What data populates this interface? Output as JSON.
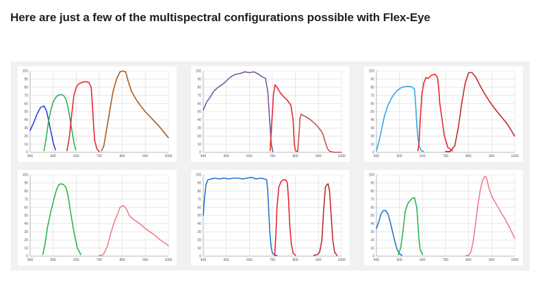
{
  "heading": "Here are just a few of the multispectral configurations possible with Flex-Eye",
  "chart_data": [
    {
      "type": "line",
      "xlim": [
        400,
        1000
      ],
      "ylim": [
        0,
        100
      ],
      "x_ticks": [
        400,
        500,
        600,
        700,
        800,
        900,
        1000
      ],
      "y_ticks": [
        0,
        10,
        20,
        30,
        40,
        50,
        60,
        70,
        80,
        90,
        100
      ],
      "grid": true,
      "series": [
        {
          "color": "#2a3fd6",
          "x": [
            400,
            415,
            430,
            445,
            460,
            470,
            480,
            490,
            500,
            510
          ],
          "y": [
            27,
            36,
            47,
            55,
            57,
            52,
            40,
            26,
            12,
            3
          ]
        },
        {
          "color": "#2bb24c",
          "x": [
            460,
            470,
            480,
            490,
            500,
            510,
            520,
            535,
            545,
            555,
            565,
            575,
            590,
            598
          ],
          "y": [
            2,
            18,
            38,
            52,
            62,
            67,
            70,
            71,
            70,
            66,
            55,
            38,
            12,
            3
          ]
        },
        {
          "color": "#e8232a",
          "x": [
            560,
            570,
            580,
            590,
            600,
            610,
            625,
            640,
            655,
            665,
            670,
            675,
            680,
            690,
            700
          ],
          "y": [
            2,
            18,
            45,
            70,
            80,
            84,
            86,
            87,
            86,
            80,
            60,
            35,
            15,
            4,
            1
          ]
        },
        {
          "color": "#a85a1c",
          "x": [
            710,
            720,
            730,
            745,
            760,
            775,
            790,
            800,
            815,
            825,
            840,
            860,
            880,
            900,
            920,
            940,
            960,
            980,
            1000
          ],
          "y": [
            2,
            8,
            25,
            50,
            75,
            90,
            99,
            100,
            99,
            88,
            75,
            65,
            57,
            50,
            44,
            38,
            32,
            25,
            18
          ]
        }
      ]
    },
    {
      "type": "line",
      "xlim": [
        400,
        1000
      ],
      "ylim": [
        0,
        100
      ],
      "x_ticks": [
        400,
        500,
        600,
        700,
        800,
        900,
        1000
      ],
      "y_ticks": [
        0,
        10,
        20,
        30,
        40,
        50,
        60,
        70,
        80,
        90,
        100
      ],
      "grid": true,
      "series": [
        {
          "color": "#7b55a3",
          "x": [
            400,
            415,
            430,
            445,
            460,
            475,
            490,
            505,
            520,
            540,
            560,
            580,
            600,
            620,
            640,
            655,
            670,
            680,
            688,
            695,
            702
          ],
          "y": [
            52,
            62,
            68,
            75,
            79,
            82,
            85,
            89,
            93,
            96,
            97,
            99,
            98,
            99,
            96,
            93,
            91,
            75,
            40,
            10,
            1
          ]
        },
        {
          "color": "#e8232a",
          "x": [
            690,
            698,
            705,
            712,
            720,
            735,
            750,
            765,
            780,
            790,
            795,
            800,
            810
          ],
          "y": [
            2,
            40,
            72,
            83,
            80,
            73,
            68,
            64,
            58,
            40,
            10,
            2,
            1
          ]
        },
        {
          "color": "#c0504d",
          "x": [
            810,
            815,
            820,
            825,
            830,
            850,
            870,
            890,
            910,
            920,
            930,
            940,
            950,
            970,
            1000
          ],
          "y": [
            2,
            20,
            42,
            47,
            46,
            43,
            39,
            34,
            27,
            22,
            12,
            4,
            1,
            0,
            0
          ]
        }
      ]
    },
    {
      "type": "line",
      "xlim": [
        400,
        1000
      ],
      "ylim": [
        0,
        100
      ],
      "x_ticks": [
        400,
        500,
        600,
        700,
        800,
        900,
        1000
      ],
      "y_ticks": [
        0,
        10,
        20,
        30,
        40,
        50,
        60,
        70,
        80,
        90,
        100
      ],
      "grid": true,
      "series": [
        {
          "color": "#29abe2",
          "x": [
            400,
            410,
            420,
            435,
            450,
            470,
            490,
            510,
            530,
            550,
            565,
            570,
            575,
            580,
            585,
            595,
            605
          ],
          "y": [
            2,
            12,
            25,
            45,
            58,
            69,
            76,
            80,
            81,
            81,
            78,
            60,
            35,
            18,
            8,
            2,
            1
          ]
        },
        {
          "color": "#e8232a",
          "x": [
            580,
            585,
            590,
            597,
            605,
            615,
            625,
            640,
            655,
            665,
            670,
            675,
            685,
            695,
            710,
            730
          ],
          "y": [
            2,
            12,
            40,
            70,
            85,
            92,
            91,
            95,
            96,
            92,
            80,
            60,
            40,
            20,
            6,
            2
          ]
        },
        {
          "color": "#c1272d",
          "x": [
            700,
            720,
            740,
            755,
            770,
            785,
            800,
            815,
            830,
            850,
            870,
            890,
            910,
            930,
            950,
            970,
            985,
            1000
          ],
          "y": [
            1,
            1,
            8,
            30,
            60,
            85,
            98,
            98,
            93,
            82,
            72,
            63,
            55,
            48,
            41,
            34,
            27,
            20
          ]
        }
      ]
    },
    {
      "type": "line",
      "xlim": [
        400,
        1000
      ],
      "ylim": [
        0,
        100
      ],
      "x_ticks": [
        400,
        500,
        600,
        700,
        800,
        900,
        1000
      ],
      "y_ticks": [
        0,
        10,
        20,
        30,
        40,
        50,
        60,
        70,
        80,
        90,
        100
      ],
      "grid": true,
      "series": [
        {
          "color": "#2bb24c",
          "x": [
            455,
            465,
            475,
            490,
            505,
            515,
            525,
            535,
            545,
            555,
            565,
            575,
            590,
            605,
            620
          ],
          "y": [
            2,
            15,
            35,
            55,
            72,
            82,
            88,
            89,
            88,
            85,
            74,
            55,
            30,
            10,
            2
          ]
        },
        {
          "color": "#f07c8a",
          "x": [
            700,
            710,
            720,
            735,
            750,
            765,
            780,
            790,
            800,
            810,
            820,
            830,
            845,
            860,
            880,
            900,
            920,
            940,
            960,
            980,
            1000
          ],
          "y": [
            1,
            1,
            3,
            12,
            28,
            42,
            52,
            60,
            62,
            61,
            57,
            50,
            46,
            43,
            39,
            34,
            30,
            26,
            21,
            17,
            13
          ]
        }
      ]
    },
    {
      "type": "line",
      "xlim": [
        400,
        1000
      ],
      "ylim": [
        0,
        100
      ],
      "x_ticks": [
        400,
        500,
        600,
        700,
        800,
        900,
        1000
      ],
      "y_ticks": [
        0,
        10,
        20,
        30,
        40,
        50,
        60,
        70,
        80,
        90,
        100
      ],
      "grid": true,
      "series": [
        {
          "color": "#1f77c9",
          "x": [
            400,
            405,
            412,
            420,
            435,
            450,
            470,
            490,
            510,
            530,
            550,
            570,
            590,
            610,
            630,
            650,
            665,
            675,
            680,
            685,
            690,
            695,
            700,
            710,
            720
          ],
          "y": [
            50,
            70,
            88,
            94,
            95,
            96,
            95,
            96,
            95,
            96,
            96,
            95,
            96,
            97,
            95,
            96,
            95,
            94,
            80,
            50,
            25,
            10,
            4,
            1,
            1
          ]
        },
        {
          "color": "#e8232a",
          "x": [
            710,
            715,
            720,
            728,
            738,
            748,
            758,
            765,
            770,
            775,
            782,
            790,
            800
          ],
          "y": [
            2,
            25,
            60,
            85,
            92,
            94,
            94,
            90,
            70,
            40,
            15,
            4,
            1
          ]
        },
        {
          "color": "#c1272d",
          "x": [
            880,
            895,
            905,
            915,
            922,
            930,
            937,
            942,
            948,
            955,
            962,
            970,
            980
          ],
          "y": [
            1,
            2,
            5,
            20,
            55,
            85,
            88,
            89,
            80,
            50,
            20,
            5,
            1
          ]
        }
      ]
    },
    {
      "type": "line",
      "xlim": [
        400,
        1000
      ],
      "ylim": [
        0,
        100
      ],
      "x_ticks": [
        400,
        500,
        600,
        700,
        800,
        900,
        1000
      ],
      "y_ticks": [
        0,
        10,
        20,
        30,
        40,
        50,
        60,
        70,
        80,
        90,
        100
      ],
      "grid": true,
      "series": [
        {
          "color": "#1f77c9",
          "x": [
            400,
            410,
            420,
            430,
            440,
            450,
            460,
            470,
            480,
            490,
            500,
            510
          ],
          "y": [
            34,
            42,
            52,
            56,
            56,
            52,
            42,
            30,
            18,
            8,
            3,
            1
          ]
        },
        {
          "color": "#2bb24c",
          "x": [
            495,
            505,
            515,
            525,
            535,
            545,
            555,
            565,
            575,
            580,
            585,
            590,
            600
          ],
          "y": [
            2,
            10,
            30,
            55,
            64,
            68,
            71,
            72,
            60,
            40,
            20,
            8,
            2
          ]
        },
        {
          "color": "#f07c8a",
          "x": [
            790,
            800,
            810,
            820,
            830,
            840,
            850,
            860,
            870,
            875,
            880,
            890,
            900,
            920,
            940,
            960,
            980,
            1000
          ],
          "y": [
            1,
            1,
            5,
            18,
            40,
            62,
            80,
            93,
            98,
            98,
            94,
            82,
            74,
            64,
            54,
            45,
            34,
            22
          ]
        }
      ]
    }
  ]
}
